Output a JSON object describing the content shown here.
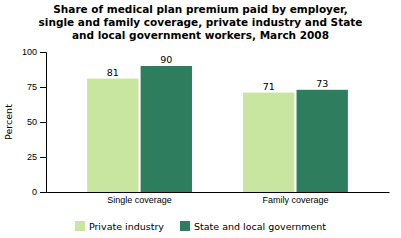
{
  "chart_data": {
    "type": "bar",
    "title": "Share of medical plan premium paid by employer,\nsingle and family coverage, private industry and State\nand local government workers, March 2008",
    "categories": [
      "Single coverage",
      "Family coverage"
    ],
    "series": [
      {
        "name": "Private industry",
        "color": "#c8e6a0",
        "values": [
          81,
          71
        ]
      },
      {
        "name": "State and local government",
        "color": "#2e7d5e",
        "values": [
          90,
          73
        ]
      }
    ],
    "ylabel": "Percent",
    "ylim": [
      0,
      100
    ],
    "yticks": [
      0,
      25,
      50,
      75,
      100
    ],
    "grid": false,
    "legend": "bottom",
    "data_labels": true
  }
}
